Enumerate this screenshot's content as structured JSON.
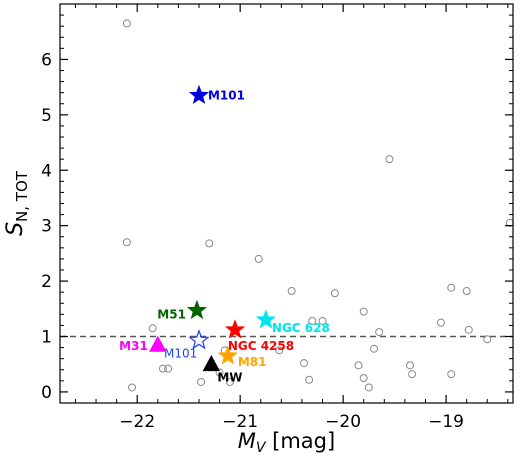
{
  "chart_data": {
    "type": "scatter",
    "xlabel_main": "M",
    "xlabel_sub": "V",
    "xlabel_unit": " [mag]",
    "ylabel_main": "S",
    "ylabel_sub": "N, TOT",
    "xlim": [
      -22.75,
      -18.35
    ],
    "ylim": [
      -0.2,
      7.0
    ],
    "x_inverted": false,
    "x_ticks": [
      -22,
      -21,
      -20,
      -19
    ],
    "x_tick_labels": [
      "−22",
      "−21",
      "−20",
      "−19"
    ],
    "y_ticks": [
      0,
      1,
      2,
      3,
      4,
      5,
      6
    ],
    "y_tick_labels": [
      "0",
      "1",
      "2",
      "3",
      "4",
      "5",
      "6"
    ],
    "reference_line_y": 1.0,
    "comparison_points": [
      {
        "x": -22.1,
        "y": 6.65
      },
      {
        "x": -22.1,
        "y": 2.7
      },
      {
        "x": -22.05,
        "y": 0.08
      },
      {
        "x": -21.85,
        "y": 1.15
      },
      {
        "x": -21.75,
        "y": 0.42
      },
      {
        "x": -21.7,
        "y": 0.42
      },
      {
        "x": -21.3,
        "y": 2.68
      },
      {
        "x": -21.15,
        "y": 0.75
      },
      {
        "x": -21.38,
        "y": 0.18
      },
      {
        "x": -21.2,
        "y": 0.35
      },
      {
        "x": -21.1,
        "y": 0.18
      },
      {
        "x": -20.82,
        "y": 2.4
      },
      {
        "x": -20.5,
        "y": 1.82
      },
      {
        "x": -20.62,
        "y": 0.75
      },
      {
        "x": -20.3,
        "y": 1.28
      },
      {
        "x": -20.2,
        "y": 1.28
      },
      {
        "x": -20.08,
        "y": 1.78
      },
      {
        "x": -20.38,
        "y": 0.52
      },
      {
        "x": -20.33,
        "y": 0.22
      },
      {
        "x": -19.85,
        "y": 0.48
      },
      {
        "x": -19.8,
        "y": 0.25
      },
      {
        "x": -19.75,
        "y": 0.08
      },
      {
        "x": -19.8,
        "y": 1.45
      },
      {
        "x": -19.7,
        "y": 0.78
      },
      {
        "x": -19.65,
        "y": 1.08
      },
      {
        "x": -19.55,
        "y": 4.2
      },
      {
        "x": -19.35,
        "y": 0.48
      },
      {
        "x": -19.33,
        "y": 0.32
      },
      {
        "x": -19.05,
        "y": 1.25
      },
      {
        "x": -18.95,
        "y": 1.88
      },
      {
        "x": -18.95,
        "y": 0.32
      },
      {
        "x": -18.8,
        "y": 1.82
      },
      {
        "x": -18.78,
        "y": 1.12
      },
      {
        "x": -18.6,
        "y": 0.95
      },
      {
        "x": -18.38,
        "y": 3.05
      }
    ],
    "highlighted": [
      {
        "label": "M101",
        "x": -21.4,
        "y": 5.35,
        "marker": "star",
        "color": "#0000e0",
        "filled": true
      },
      {
        "label": "M51",
        "x": -21.42,
        "y": 1.47,
        "marker": "star",
        "color": "#006400",
        "filled": true
      },
      {
        "label": "NGC 4258",
        "x": -21.05,
        "y": 1.12,
        "marker": "star",
        "color": "#ff0000",
        "filled": true
      },
      {
        "label": "NGC 628",
        "x": -20.75,
        "y": 1.3,
        "marker": "star",
        "color": "#00e5ee",
        "filled": true
      },
      {
        "label": "M101",
        "x": -21.4,
        "y": 0.93,
        "marker": "star",
        "color": "#1f3fff",
        "filled": false
      },
      {
        "label": "M31",
        "x": -21.8,
        "y": 0.83,
        "marker": "triangle",
        "color": "#ff00ff",
        "filled": true
      },
      {
        "label": "M81",
        "x": -21.12,
        "y": 0.65,
        "marker": "star",
        "color": "#ffa500",
        "filled": true
      },
      {
        "label": "MW",
        "x": -21.28,
        "y": 0.48,
        "marker": "triangle",
        "color": "#000000",
        "filled": true
      }
    ]
  }
}
